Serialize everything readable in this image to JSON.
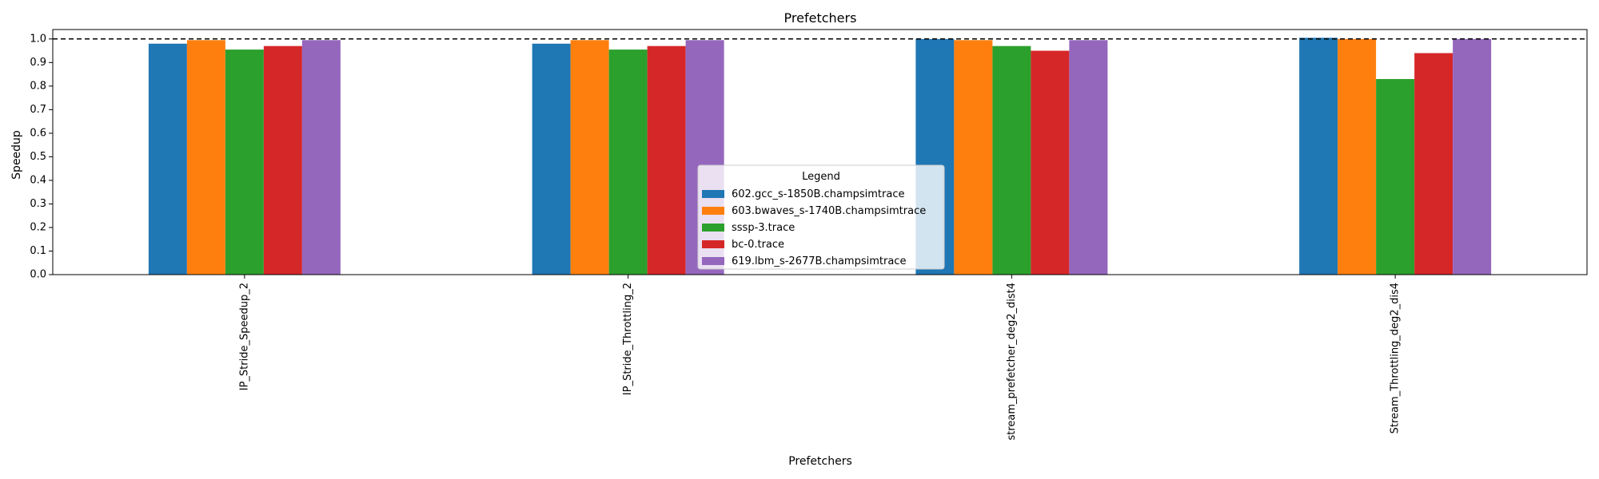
{
  "chart_data": {
    "type": "bar",
    "title": "Prefetchers",
    "xlabel": "Prefetchers",
    "ylabel": "Speedup",
    "categories": [
      "IP_Stride_Speedup_2",
      "IP_Stride_Throttling_2",
      "stream_prefetcher_deg2_dist4",
      "Stream_Throttling_deg2_dis4"
    ],
    "series": [
      {
        "name": "602.gcc_s-1850B.champsimtrace",
        "color": "#1f77b4",
        "values": [
          0.98,
          0.98,
          1.0,
          1.005
        ]
      },
      {
        "name": "603.bwaves_s-1740B.champsimtrace",
        "color": "#ff7f0e",
        "values": [
          0.995,
          0.995,
          0.995,
          1.0
        ]
      },
      {
        "name": "sssp-3.trace",
        "color": "#2ca02c",
        "values": [
          0.955,
          0.955,
          0.97,
          0.83
        ]
      },
      {
        "name": "bc-0.trace",
        "color": "#d62728",
        "values": [
          0.97,
          0.97,
          0.95,
          0.94
        ]
      },
      {
        "name": "619.lbm_s-2677B.champsimtrace",
        "color": "#9467bd",
        "values": [
          0.995,
          0.995,
          0.995,
          1.0
        ]
      }
    ],
    "ylim": [
      0,
      1.04
    ],
    "yticks": [
      0.0,
      0.1,
      0.2,
      0.3,
      0.4,
      0.5,
      0.6,
      0.7,
      0.8,
      0.9,
      1.0
    ],
    "reference_line": 1.0,
    "grid": false,
    "legend": {
      "title": "Legend",
      "placement": "lower-center"
    }
  }
}
